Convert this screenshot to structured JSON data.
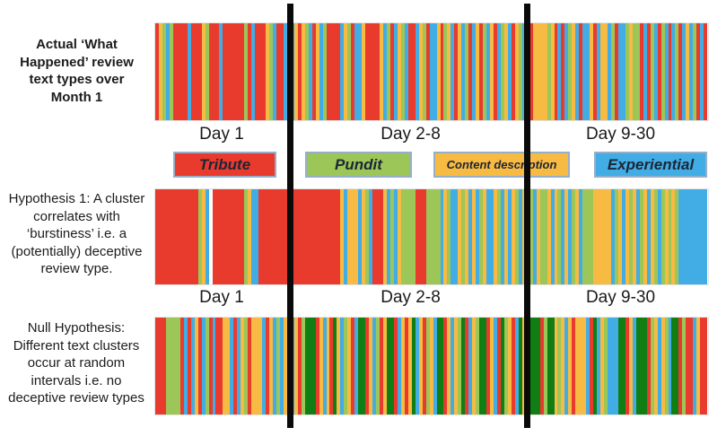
{
  "palette": {
    "R": "#e93a2e",
    "G": "#9cc658",
    "Y": "#f7ba42",
    "B": "#42ace4",
    "D": "#117e14",
    "W": "#ffffff"
  },
  "left_labels": [
    {
      "text": "Actual ‘What Happened’ review text types over Month 1"
    },
    {
      "text": "Hypothesis 1: A cluster correlates with ‘burstiness’ i.e. a (potentially) deceptive review type."
    },
    {
      "text": "Null Hypothesis: Different text clusters occur at random intervals i.e. no deceptive review types"
    }
  ],
  "day_labels": [
    "Day 1",
    "Day 2-8",
    "Day 9-30"
  ],
  "legend": [
    {
      "label": "Tribute",
      "color": "#e93a2e"
    },
    {
      "label": "Pundit",
      "color": "#9cc658"
    },
    {
      "label": "Content description",
      "color": "#f7ba42"
    },
    {
      "label": "Experiential",
      "color": "#42ace4"
    }
  ],
  "divider_color": "#0a0a0a",
  "strips": [
    {
      "name": "actual-review-types",
      "sections": [
        "RYGBGRRRRBRRRYGRRRBRRRRRRGRBRRRYGBRRBR",
        "BYRYGBRYBGRRRRBYGRBBYRRRRYBGRBYGBRRBYGRBBYRGYBRYBGRBYRGBYRBGYBRYGB",
        "GRYYYYGYRBRBGYBRBBYRBYYBGRBBGYGGRBRGBRGBRBGRBYBGRBR"
      ]
    },
    {
      "name": "hypothesis-1-burstiness",
      "sections": [
        "RRRRRRRRRRRRGYBWRRRRRRRRRGYBBRRRRRRRRR",
        "RRRRRRRRRRRRRRYBYYYBYGBRRRYBGBYGGGGRRRGGGGBYGBBYGYBYBGYBBYGBYBYGBY",
        "YGBYGGYBYGBYBGYBGGGYYYYYBGYBYGYBGYBYGBGYGYGBBBBBBBB"
      ]
    },
    {
      "name": "null-hypothesis-random",
      "sections": [
        "RRRGGGGRBRBYRBGRBRRYYBRBYGRYYYBRYBGBYR",
        "BYRGDDDRYBYRDYBGYRBDDRYBGRYDDRBYRYDBYRGYBDDRYBYGDRBYGDDRYBRDGYRBDY",
        "RDDDRGDDYGYBYRYYYBRDBYGBBBDDRYBDDDRGYBYGBDDRGRRBYRR"
      ]
    }
  ]
}
